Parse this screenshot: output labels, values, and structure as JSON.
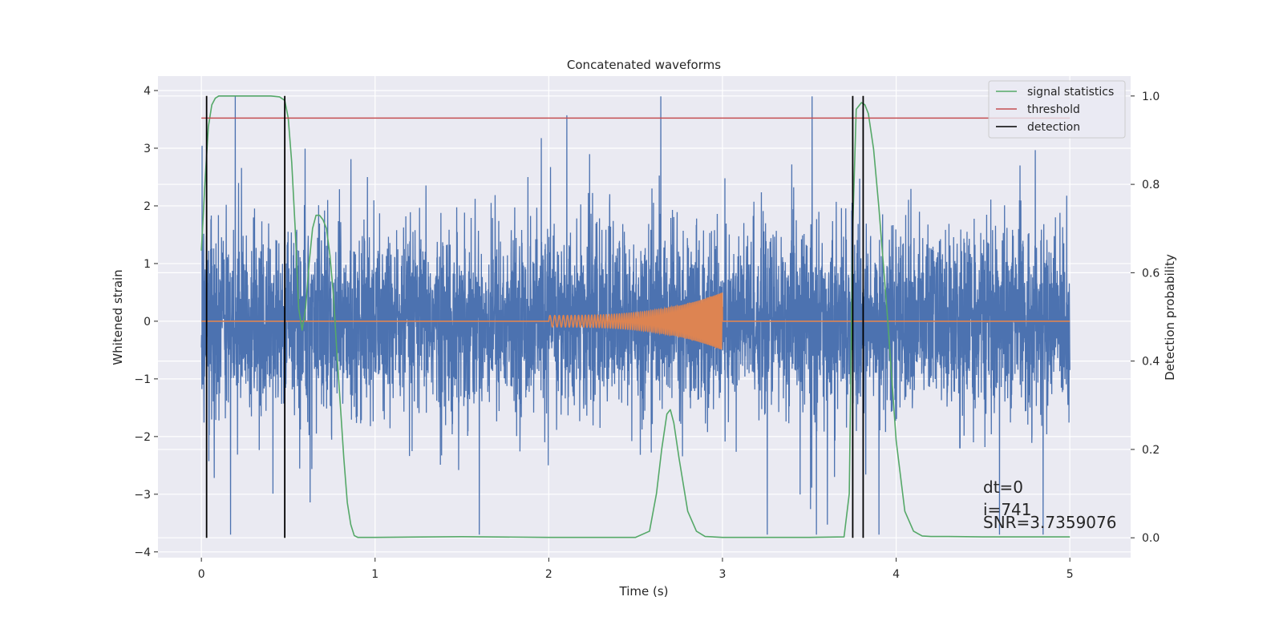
{
  "chart_data": {
    "type": "line",
    "title": "Concatenated waveforms",
    "xlabel": "Time (s)",
    "ylabel": "Whitened strain",
    "y2label": "Detection probability",
    "xlim": [
      -0.25,
      5.35
    ],
    "ylim": [
      -4.1,
      4.25
    ],
    "y2lim": [
      -0.045,
      1.045
    ],
    "x_ticks": [
      0,
      1,
      2,
      3,
      4,
      5
    ],
    "y_ticks": [
      -4,
      -3,
      -2,
      -1,
      0,
      1,
      2,
      3,
      4
    ],
    "y2_ticks": [
      0.0,
      0.2,
      0.4,
      0.6,
      0.8,
      1.0
    ],
    "x_tick_labels": [
      "0",
      "1",
      "2",
      "3",
      "4",
      "5"
    ],
    "y_tick_labels": [
      "−4",
      "−3",
      "−2",
      "−1",
      "0",
      "1",
      "2",
      "3",
      "4"
    ],
    "y2_tick_labels": [
      "0.0",
      "0.2",
      "0.4",
      "0.6",
      "0.8",
      "1.0"
    ],
    "grid": true,
    "legend_position": "top-right",
    "series": [
      {
        "name": "",
        "axis": "left",
        "color": "#4c72b0",
        "kind": "noise",
        "x_range": [
          0,
          5
        ],
        "amplitude_rms": 0.75,
        "envelope": [
          -3.7,
          3.9
        ]
      },
      {
        "name": "",
        "axis": "left",
        "color": "#dd8452",
        "kind": "chirp",
        "x_flat": [
          0,
          5
        ],
        "chirp_x": [
          2.0,
          3.0
        ],
        "chirp_amplitude": [
          0.1,
          0.5
        ],
        "chirp_frequency_hz": [
          35,
          120
        ]
      },
      {
        "name": "signal statistics",
        "axis": "right",
        "color": "#55a868",
        "x": [
          0,
          0.02,
          0.04,
          0.06,
          0.08,
          0.1,
          0.15,
          0.2,
          0.3,
          0.4,
          0.45,
          0.48,
          0.5,
          0.52,
          0.54,
          0.56,
          0.58,
          0.6,
          0.62,
          0.64,
          0.66,
          0.68,
          0.7,
          0.72,
          0.74,
          0.76,
          0.78,
          0.8,
          0.82,
          0.84,
          0.86,
          0.88,
          0.9,
          1.0,
          1.5,
          2.0,
          2.5,
          2.58,
          2.62,
          2.65,
          2.68,
          2.7,
          2.72,
          2.75,
          2.8,
          2.85,
          2.9,
          3.0,
          3.5,
          3.7,
          3.73,
          3.75,
          3.77,
          3.8,
          3.82,
          3.84,
          3.87,
          3.9,
          3.95,
          4.0,
          4.05,
          4.1,
          4.15,
          4.2,
          4.3,
          4.5,
          5.0
        ],
        "y": [
          0.65,
          0.8,
          0.93,
          0.98,
          0.995,
          1.0,
          1.0,
          1.0,
          1.0,
          1.0,
          0.998,
          0.99,
          0.95,
          0.85,
          0.7,
          0.52,
          0.47,
          0.52,
          0.62,
          0.7,
          0.73,
          0.73,
          0.72,
          0.7,
          0.64,
          0.55,
          0.42,
          0.3,
          0.18,
          0.08,
          0.03,
          0.005,
          0.001,
          0.001,
          0.0025,
          0.001,
          0.001,
          0.015,
          0.1,
          0.2,
          0.28,
          0.29,
          0.26,
          0.18,
          0.06,
          0.015,
          0.003,
          0.001,
          0.001,
          0.002,
          0.1,
          0.7,
          0.97,
          0.985,
          0.98,
          0.96,
          0.88,
          0.75,
          0.5,
          0.22,
          0.06,
          0.015,
          0.004,
          0.003,
          0.003,
          0.002,
          0.002
        ]
      },
      {
        "name": "threshold",
        "axis": "right",
        "color": "#c44e52",
        "x": [
          0,
          5
        ],
        "y": [
          0.95,
          0.95
        ]
      },
      {
        "name": "detection",
        "axis": "right",
        "color": "#000000",
        "kind": "vlines",
        "x": [
          0.03,
          0.48,
          3.75,
          3.81
        ],
        "ymin": 0.0,
        "ymax": 1.0
      }
    ],
    "annotations": [
      "dt=0",
      "i=741",
      "SNR=3.7359076"
    ]
  }
}
